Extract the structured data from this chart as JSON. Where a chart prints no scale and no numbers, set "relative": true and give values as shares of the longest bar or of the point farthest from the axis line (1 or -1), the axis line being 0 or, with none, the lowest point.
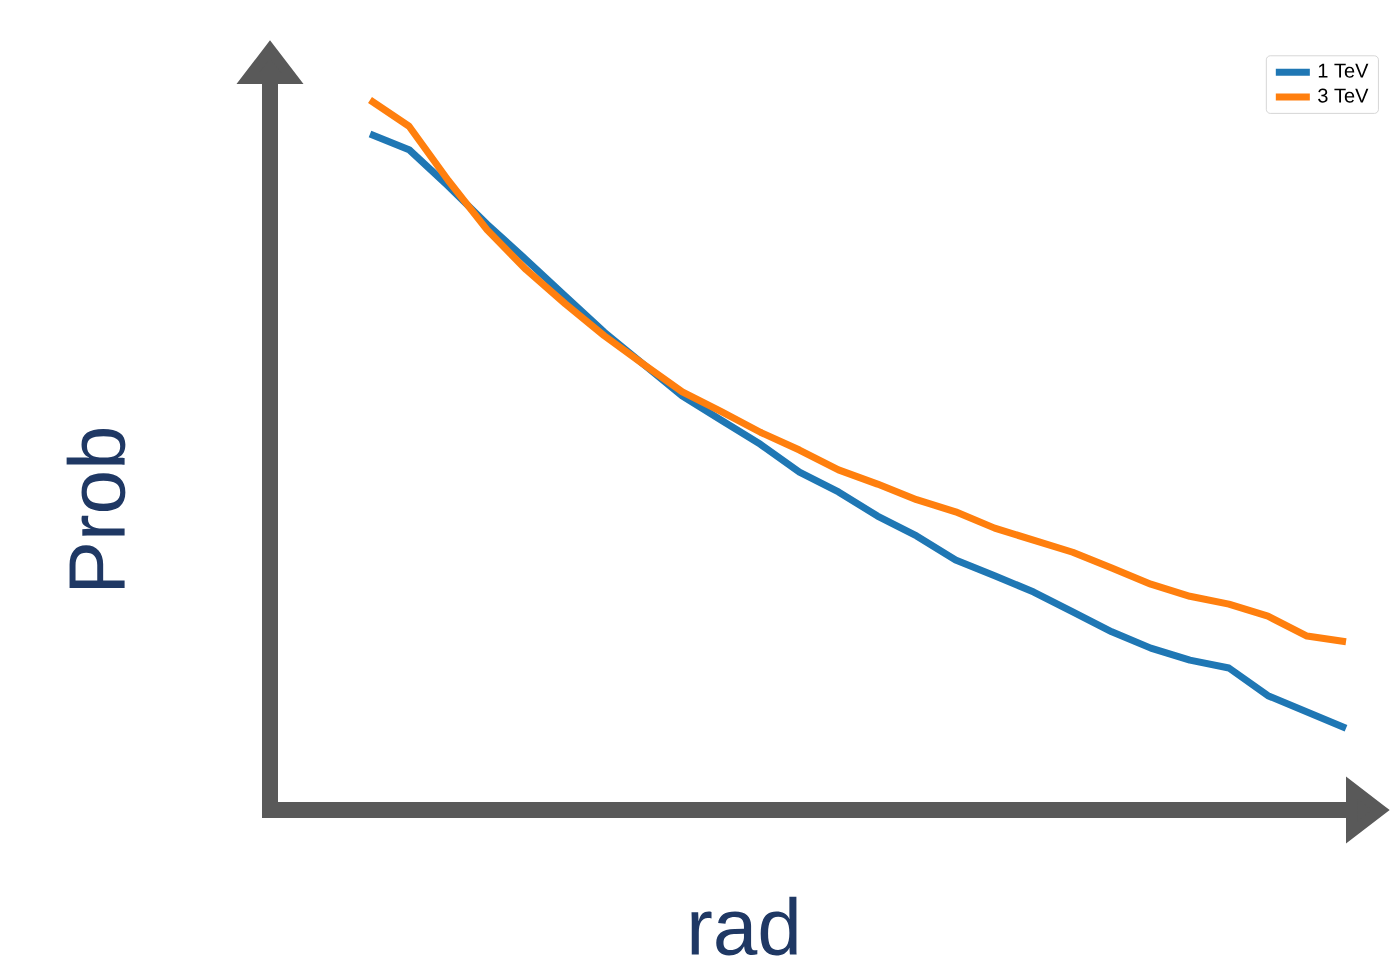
{
  "chart_data": {
    "type": "line",
    "xlabel": "rad",
    "ylabel": "Prob",
    "relative": true,
    "legend": "top right",
    "line_style": "solid",
    "categories": [
      null,
      null,
      null,
      null,
      null,
      null,
      null,
      null,
      null,
      null,
      null,
      null,
      null,
      null,
      null,
      null,
      null,
      null,
      null,
      null,
      null,
      null,
      null,
      null,
      null,
      null
    ],
    "series": [
      {
        "name": "1 TeV",
        "color": "#1f77b4",
        "values": [
          0.952,
          0.93,
          0.879,
          0.825,
          0.775,
          0.724,
          0.673,
          0.628,
          0.583,
          0.549,
          0.515,
          0.476,
          0.448,
          0.414,
          0.386,
          0.352,
          0.33,
          0.307,
          0.279,
          0.251,
          0.228,
          0.211,
          0.2,
          0.161,
          0.138,
          0.115
        ]
      },
      {
        "name": "3 TeV",
        "color": "#ff7f0e",
        "values": [
          1,
          0.963,
          0.887,
          0.817,
          0.761,
          0.713,
          0.668,
          0.628,
          0.589,
          0.561,
          0.532,
          0.507,
          0.479,
          0.459,
          0.437,
          0.42,
          0.397,
          0.38,
          0.363,
          0.341,
          0.318,
          0.301,
          0.29,
          0.273,
          0.245,
          0.237
        ]
      }
    ]
  }
}
